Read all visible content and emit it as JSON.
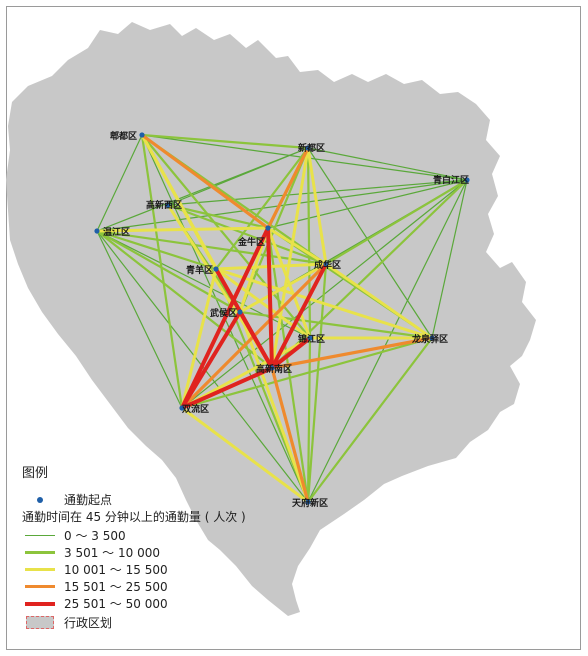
{
  "legend": {
    "title": "图例",
    "origin_label": "通勤起点",
    "flow_title": "通勤时间在 45 分钟以上的通勤量 ( 人次 )",
    "classes": [
      {
        "label": "0 ～ 3 500",
        "color": "#5aa83a",
        "width": 1.2
      },
      {
        "label": "3 501 ～ 10 000",
        "color": "#8cc43c",
        "width": 2.2
      },
      {
        "label": "10 001 ～ 15 500",
        "color": "#e8e24a",
        "width": 3
      },
      {
        "label": "15 501 ～ 25 500",
        "color": "#ef8a2e",
        "width": 3.2
      },
      {
        "label": "25 501 ～ 50 000",
        "color": "#e0231f",
        "width": 4
      }
    ],
    "admin_label": "行政区划"
  },
  "map": {
    "region_fill": "#c8c8c8",
    "origin_color": "#1f5fa8",
    "districts": [
      {
        "id": "pidu",
        "name": "郫都区"
      },
      {
        "id": "xindu",
        "name": "新都区"
      },
      {
        "id": "qingbaijiang",
        "name": "青白江区"
      },
      {
        "id": "gaoxinxi",
        "name": "高新西区"
      },
      {
        "id": "wenjiang",
        "name": "温江区"
      },
      {
        "id": "jinniu",
        "name": "金牛区"
      },
      {
        "id": "chenghua",
        "name": "成华区"
      },
      {
        "id": "qingyang",
        "name": "青羊区"
      },
      {
        "id": "wuhou",
        "name": "武侯区"
      },
      {
        "id": "jinjiang",
        "name": "锦江区"
      },
      {
        "id": "longquanyi",
        "name": "龙泉驿区"
      },
      {
        "id": "gaoxin",
        "name": "高新南区"
      },
      {
        "id": "shuangliu",
        "name": "双流区"
      },
      {
        "id": "tianfu",
        "name": "天府新区"
      }
    ],
    "flows": [
      {
        "from": "pidu",
        "to": "xindu",
        "cls": 1
      },
      {
        "from": "pidu",
        "to": "qingbaijiang",
        "cls": 0
      },
      {
        "from": "pidu",
        "to": "jinniu",
        "cls": 3
      },
      {
        "from": "pidu",
        "to": "wuhou",
        "cls": 2
      },
      {
        "from": "pidu",
        "to": "gaoxin",
        "cls": 2
      },
      {
        "from": "pidu",
        "to": "qingyang",
        "cls": 2
      },
      {
        "from": "pidu",
        "to": "chenghua",
        "cls": 1
      },
      {
        "from": "pidu",
        "to": "jinjiang",
        "cls": 1
      },
      {
        "from": "pidu",
        "to": "longquanyi",
        "cls": 0
      },
      {
        "from": "pidu",
        "to": "shuangliu",
        "cls": 1
      },
      {
        "from": "pidu",
        "to": "wenjiang",
        "cls": 0
      },
      {
        "from": "pidu",
        "to": "tianfu",
        "cls": 0
      },
      {
        "from": "xindu",
        "to": "jinniu",
        "cls": 3
      },
      {
        "from": "xindu",
        "to": "chenghua",
        "cls": 2
      },
      {
        "from": "xindu",
        "to": "gaoxin",
        "cls": 2
      },
      {
        "from": "xindu",
        "to": "wuhou",
        "cls": 1
      },
      {
        "from": "xindu",
        "to": "qingbaijiang",
        "cls": 0
      },
      {
        "from": "xindu",
        "to": "wenjiang",
        "cls": 0
      },
      {
        "from": "xindu",
        "to": "qingyang",
        "cls": 1
      },
      {
        "from": "xindu",
        "to": "jinjiang",
        "cls": 1
      },
      {
        "from": "xindu",
        "to": "longquanyi",
        "cls": 0
      },
      {
        "from": "xindu",
        "to": "shuangliu",
        "cls": 0
      },
      {
        "from": "xindu",
        "to": "gaoxinxi",
        "cls": 0
      },
      {
        "from": "qingbaijiang",
        "to": "jinniu",
        "cls": 0
      },
      {
        "from": "qingbaijiang",
        "to": "chenghua",
        "cls": 1
      },
      {
        "from": "qingbaijiang",
        "to": "gaoxin",
        "cls": 1
      },
      {
        "from": "qingbaijiang",
        "to": "wenjiang",
        "cls": 0
      },
      {
        "from": "qingbaijiang",
        "to": "wuhou",
        "cls": 0
      },
      {
        "from": "qingbaijiang",
        "to": "longquanyi",
        "cls": 0
      },
      {
        "from": "qingbaijiang",
        "to": "shuangliu",
        "cls": 0
      },
      {
        "from": "qingbaijiang",
        "to": "tianfu",
        "cls": 0
      },
      {
        "from": "qingbaijiang",
        "to": "gaoxinxi",
        "cls": 0
      },
      {
        "from": "wenjiang",
        "to": "jinniu",
        "cls": 2
      },
      {
        "from": "wenjiang",
        "to": "qingyang",
        "cls": 1
      },
      {
        "from": "wenjiang",
        "to": "wuhou",
        "cls": 1
      },
      {
        "from": "wenjiang",
        "to": "gaoxin",
        "cls": 1
      },
      {
        "from": "wenjiang",
        "to": "chenghua",
        "cls": 1
      },
      {
        "from": "wenjiang",
        "to": "shuangliu",
        "cls": 0
      },
      {
        "from": "wenjiang",
        "to": "tianfu",
        "cls": 0
      },
      {
        "from": "wenjiang",
        "to": "jinjiang",
        "cls": 0
      },
      {
        "from": "wenjiang",
        "to": "longquanyi",
        "cls": 0
      },
      {
        "from": "gaoxinxi",
        "to": "gaoxin",
        "cls": 2
      },
      {
        "from": "gaoxinxi",
        "to": "jinniu",
        "cls": 1
      },
      {
        "from": "gaoxinxi",
        "to": "wuhou",
        "cls": 1
      },
      {
        "from": "gaoxinxi",
        "to": "chenghua",
        "cls": 1
      },
      {
        "from": "jinniu",
        "to": "gaoxin",
        "cls": 4
      },
      {
        "from": "jinniu",
        "to": "shuangliu",
        "cls": 4
      },
      {
        "from": "jinniu",
        "to": "chenghua",
        "cls": 2
      },
      {
        "from": "jinniu",
        "to": "jinjiang",
        "cls": 2
      },
      {
        "from": "jinniu",
        "to": "longquanyi",
        "cls": 1
      },
      {
        "from": "jinniu",
        "to": "tianfu",
        "cls": 1
      },
      {
        "from": "jinniu",
        "to": "wuhou",
        "cls": 2
      },
      {
        "from": "chenghua",
        "to": "gaoxin",
        "cls": 4
      },
      {
        "from": "chenghua",
        "to": "shuangliu",
        "cls": 3
      },
      {
        "from": "chenghua",
        "to": "longquanyi",
        "cls": 2
      },
      {
        "from": "chenghua",
        "to": "wuhou",
        "cls": 2
      },
      {
        "from": "chenghua",
        "to": "qingyang",
        "cls": 2
      },
      {
        "from": "chenghua",
        "to": "tianfu",
        "cls": 1
      },
      {
        "from": "qingyang",
        "to": "gaoxin",
        "cls": 4
      },
      {
        "from": "qingyang",
        "to": "shuangliu",
        "cls": 2
      },
      {
        "from": "qingyang",
        "to": "jinjiang",
        "cls": 2
      },
      {
        "from": "qingyang",
        "to": "longquanyi",
        "cls": 2
      },
      {
        "from": "qingyang",
        "to": "tianfu",
        "cls": 1
      },
      {
        "from": "wuhou",
        "to": "gaoxin",
        "cls": 4
      },
      {
        "from": "wuhou",
        "to": "shuangliu",
        "cls": 4
      },
      {
        "from": "wuhou",
        "to": "tianfu",
        "cls": 2
      },
      {
        "from": "wuhou",
        "to": "longquanyi",
        "cls": 1
      },
      {
        "from": "jinjiang",
        "to": "gaoxin",
        "cls": 4
      },
      {
        "from": "jinjiang",
        "to": "longquanyi",
        "cls": 2
      },
      {
        "from": "jinjiang",
        "to": "shuangliu",
        "cls": 2
      },
      {
        "from": "jinjiang",
        "to": "tianfu",
        "cls": 1
      },
      {
        "from": "longquanyi",
        "to": "gaoxin",
        "cls": 3
      },
      {
        "from": "longquanyi",
        "to": "shuangliu",
        "cls": 1
      },
      {
        "from": "longquanyi",
        "to": "tianfu",
        "cls": 1
      },
      {
        "from": "shuangliu",
        "to": "gaoxin",
        "cls": 4
      },
      {
        "from": "shuangliu",
        "to": "tianfu",
        "cls": 2
      },
      {
        "from": "tianfu",
        "to": "gaoxin",
        "cls": 3
      }
    ]
  }
}
